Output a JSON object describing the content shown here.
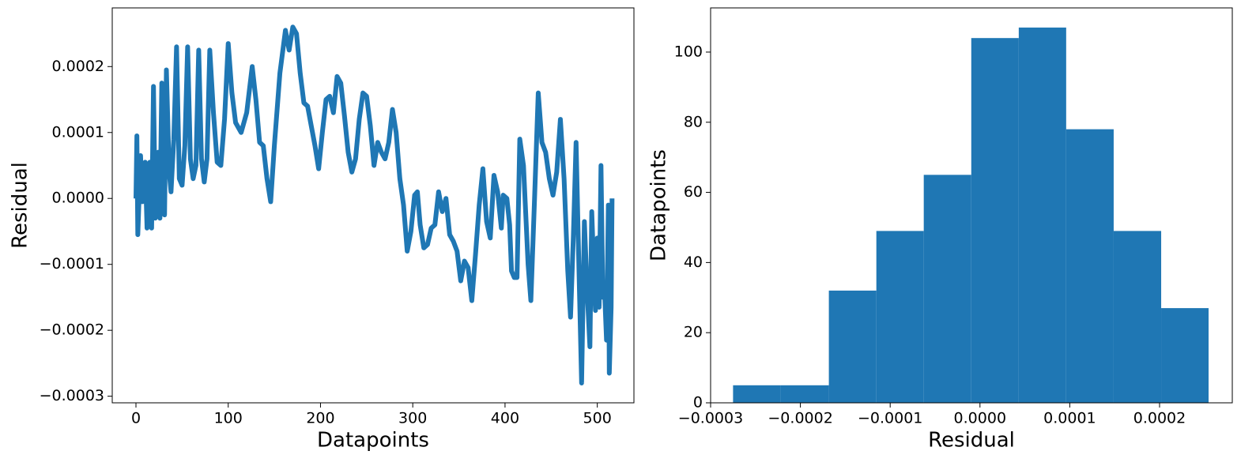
{
  "chart_data": [
    {
      "type": "line",
      "xlabel": "Datapoints",
      "ylabel": "Residual",
      "color": "#1f77b4",
      "xlim": [
        -25.7,
        539.7
      ],
      "ylim": [
        -0.00031,
        0.000289
      ],
      "xticks": [
        0,
        100,
        200,
        300,
        400,
        500
      ],
      "yticks": [
        {
          "value": -0.0003,
          "label": "−0.0003"
        },
        {
          "value": -0.0002,
          "label": "−0.0002"
        },
        {
          "value": -0.0001,
          "label": "−0.0001"
        },
        {
          "value": 0,
          "label": "0.0000"
        },
        {
          "value": 0.0001,
          "label": "0.0001"
        },
        {
          "value": 0.0002,
          "label": "0.0002"
        }
      ],
      "x": [
        0,
        1,
        2,
        5,
        7,
        10,
        12,
        15,
        17,
        19,
        21,
        24,
        26,
        28,
        31,
        33,
        36,
        38,
        41,
        44,
        47,
        50,
        53,
        56,
        59,
        62,
        65,
        68,
        71,
        74,
        77,
        80,
        84,
        88,
        92,
        96,
        100,
        104,
        108,
        114,
        120,
        126,
        130,
        134,
        138,
        142,
        146,
        150,
        156,
        162,
        166,
        170,
        174,
        178,
        182,
        186,
        190,
        194,
        198,
        202,
        206,
        210,
        214,
        218,
        222,
        226,
        230,
        234,
        238,
        242,
        246,
        250,
        254,
        258,
        262,
        266,
        270,
        274,
        278,
        282,
        286,
        290,
        294,
        298,
        302,
        305,
        308,
        312,
        316,
        320,
        324,
        328,
        332,
        336,
        340,
        344,
        348,
        352,
        356,
        360,
        364,
        368,
        372,
        376,
        380,
        384,
        388,
        392,
        396,
        398,
        402,
        405,
        407,
        410,
        413,
        416,
        420,
        425,
        428,
        432,
        436,
        440,
        444,
        448,
        452,
        456,
        460,
        464,
        468,
        471,
        474,
        477,
        480,
        483,
        486,
        489,
        492,
        494,
        496,
        498,
        500,
        502,
        504,
        506,
        508,
        510,
        512,
        513,
        515,
        516
      ],
      "values": [
        0,
        9.5e-05,
        -5.5e-05,
        6.5e-05,
        -5e-06,
        5.5e-05,
        -4.5e-05,
        5.5e-05,
        -4.5e-05,
        0.00017,
        -3e-05,
        7e-05,
        -3e-05,
        0.000175,
        -2.5e-05,
        0.000195,
        4e-05,
        1e-05,
        9e-05,
        0.00023,
        3e-05,
        2e-05,
        8e-05,
        0.00023,
        6e-05,
        3e-05,
        5e-05,
        0.000225,
        6e-05,
        2.5e-05,
        6e-05,
        0.000225,
        0.00013,
        5.5e-05,
        5e-05,
        0.00012,
        0.000235,
        0.00016,
        0.000115,
        0.0001,
        0.00013,
        0.0002,
        0.00015,
        8.5e-05,
        8e-05,
        3e-05,
        -5e-06,
        8e-05,
        0.00019,
        0.000255,
        0.000225,
        0.00026,
        0.00025,
        0.00019,
        0.000145,
        0.00014,
        0.00011,
        8e-05,
        4.5e-05,
        0.0001,
        0.00015,
        0.000155,
        0.00013,
        0.000185,
        0.000175,
        0.000125,
        7e-05,
        4e-05,
        6e-05,
        0.00012,
        0.00016,
        0.000155,
        0.00011,
        5e-05,
        8.5e-05,
        7e-05,
        6e-05,
        8.5e-05,
        0.000135,
        0.0001,
        3e-05,
        -1e-05,
        -8e-05,
        -5e-05,
        5e-06,
        1e-05,
        -4e-05,
        -7.5e-05,
        -7e-05,
        -4.5e-05,
        -4e-05,
        1e-05,
        -2e-05,
        0,
        -5.5e-05,
        -6.5e-05,
        -8e-05,
        -0.000125,
        -9.5e-05,
        -0.000105,
        -0.000155,
        -8.5e-05,
        -1e-05,
        4.5e-05,
        -3.5e-05,
        -6e-05,
        3.5e-05,
        1e-05,
        -4.5e-05,
        5e-06,
        0,
        -4e-05,
        -0.00011,
        -0.00012,
        -0.00012,
        9e-05,
        5e-05,
        -0.0001,
        -0.000155,
        0,
        0.00016,
        8.5e-05,
        7e-05,
        3e-05,
        5e-06,
        4e-05,
        0.00012,
        3e-05,
        -0.00011,
        -0.00018,
        -6e-05,
        8.5e-05,
        -0.0001,
        -0.00028,
        -3.5e-05,
        -0.00014,
        -0.000225,
        -2e-05,
        -0.0001,
        -0.00017,
        -6e-05,
        -0.000165,
        5e-05,
        -0.00015,
        -0.000145,
        -0.000215,
        -1e-05,
        -0.000265,
        -0.000165,
        0
      ]
    },
    {
      "type": "histogram",
      "xlabel": "Residual",
      "ylabel": "Datapoints",
      "color": "#1f77b4",
      "xlim": [
        -0.0003,
        0.000281
      ],
      "ylim": [
        0,
        112.6
      ],
      "xticks": [
        {
          "value": -0.0003,
          "label": "−0.0003"
        },
        {
          "value": -0.0002,
          "label": "−0.0002"
        },
        {
          "value": -0.0001,
          "label": "−0.0001"
        },
        {
          "value": 0,
          "label": "0.0000"
        },
        {
          "value": 0.0001,
          "label": "0.0001"
        },
        {
          "value": 0.0002,
          "label": "0.0002"
        }
      ],
      "yticks": [
        0,
        20,
        40,
        60,
        80,
        100
      ],
      "bins": [
        -0.000275,
        -0.000222,
        -0.0001683,
        -0.0001154,
        -6.26e-05,
        -9.7e-06,
        4.32e-05,
        9.6e-05,
        0.0001489,
        0.0002018,
        0.0002546
      ],
      "values": [
        5,
        5,
        32,
        49,
        65,
        104,
        107,
        78,
        49,
        27
      ]
    }
  ]
}
